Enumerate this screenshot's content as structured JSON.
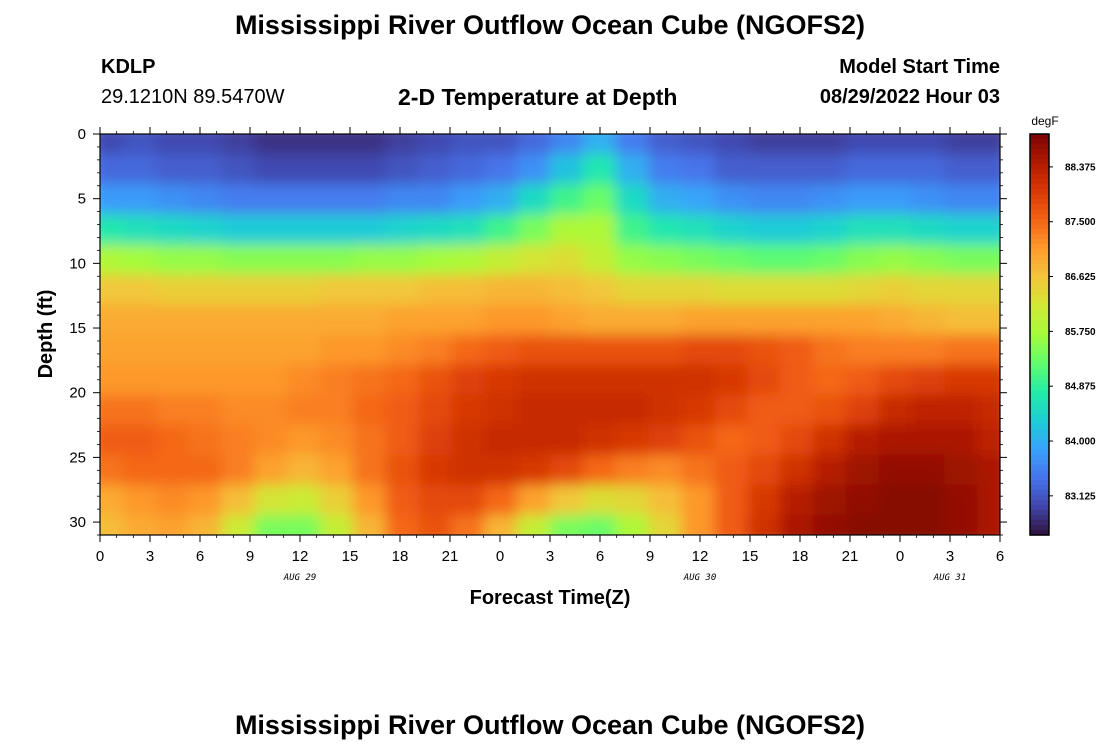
{
  "header": {
    "title": "Mississippi River Outflow Ocean Cube (NGOFS2)",
    "station": "KDLP",
    "coords": "29.1210N  89.5470W",
    "subtitle": "2-D Temperature at Depth",
    "model_start_label": "Model Start Time",
    "model_start_value": "08/29/2022 Hour 03"
  },
  "footer": {
    "title": "Mississippi River Outflow Ocean Cube (NGOFS2)"
  },
  "chart_data": {
    "type": "heatmap",
    "title": "2-D Temperature at Depth",
    "xlabel": "Forecast Time(Z)",
    "ylabel": "Depth (ft)",
    "x_tick_labels": [
      "0",
      "3",
      "6",
      "9",
      "12",
      "15",
      "18",
      "21",
      "0",
      "3",
      "6",
      "9",
      "12",
      "15",
      "18",
      "21",
      "0",
      "3",
      "6"
    ],
    "date_labels": [
      "AUG 29",
      "AUG 30",
      "AUG 31"
    ],
    "x_range_hours": [
      0,
      54
    ],
    "y_ticks": [
      0,
      5,
      10,
      15,
      20,
      25,
      30
    ],
    "ylim": [
      0,
      31
    ],
    "y_inverted": true,
    "colorbar": {
      "unit": "degF",
      "tick_labels": [
        "88.375",
        "87.500",
        "86.625",
        "85.750",
        "84.875",
        "84.000",
        "83.125"
      ],
      "range": [
        82.5,
        88.9
      ],
      "colormap": [
        "#30123b",
        "#4145ab",
        "#4675ed",
        "#39a2fc",
        "#1bcfd4",
        "#24eca6",
        "#61fc6c",
        "#a4fc3b",
        "#d1e834",
        "#f3c63a",
        "#fe9b2d",
        "#f36315",
        "#d93806",
        "#b11901",
        "#7a0402"
      ]
    },
    "values_degF": [
      [
        83.0,
        83.1,
        83.0,
        83.0,
        82.9,
        82.8,
        82.8,
        82.8,
        82.8,
        82.9,
        83.0,
        83.1,
        83.1,
        83.3,
        83.6,
        84.0,
        83.5,
        83.2,
        83.1,
        83.0,
        82.9,
        82.9,
        82.9,
        83.0,
        83.0,
        83.0,
        82.9,
        82.9
      ],
      [
        83.3,
        83.3,
        83.2,
        83.2,
        83.1,
        83.0,
        83.0,
        83.0,
        83.0,
        83.1,
        83.2,
        83.3,
        83.4,
        83.7,
        84.2,
        84.7,
        84.0,
        83.5,
        83.4,
        83.2,
        83.2,
        83.2,
        83.2,
        83.3,
        83.3,
        83.3,
        83.2,
        83.2
      ],
      [
        83.8,
        83.8,
        83.7,
        83.6,
        83.5,
        83.5,
        83.5,
        83.5,
        83.5,
        83.6,
        83.6,
        83.8,
        84.0,
        84.5,
        85.0,
        85.3,
        84.5,
        84.0,
        83.9,
        83.7,
        83.6,
        83.6,
        83.7,
        83.8,
        83.8,
        83.7,
        83.6,
        83.6
      ],
      [
        84.7,
        84.6,
        84.5,
        84.4,
        84.3,
        84.3,
        84.3,
        84.3,
        84.3,
        84.4,
        84.5,
        84.6,
        85.0,
        85.4,
        85.8,
        85.8,
        85.0,
        84.7,
        84.6,
        84.4,
        84.3,
        84.3,
        84.4,
        84.6,
        84.6,
        84.5,
        84.4,
        84.4
      ],
      [
        85.8,
        85.7,
        85.6,
        85.6,
        85.5,
        85.5,
        85.5,
        85.5,
        85.6,
        85.6,
        85.7,
        85.8,
        86.0,
        86.2,
        86.3,
        86.0,
        85.6,
        85.5,
        85.4,
        85.3,
        85.2,
        85.2,
        85.3,
        85.5,
        85.6,
        85.5,
        85.4,
        85.4
      ],
      [
        86.6,
        86.6,
        86.5,
        86.5,
        86.5,
        86.5,
        86.5,
        86.6,
        86.6,
        86.6,
        86.7,
        86.7,
        86.8,
        86.8,
        86.7,
        86.6,
        86.4,
        86.4,
        86.4,
        86.3,
        86.3,
        86.3,
        86.3,
        86.4,
        86.5,
        86.4,
        86.4,
        86.4
      ],
      [
        86.9,
        86.9,
        86.9,
        86.9,
        86.9,
        86.9,
        86.9,
        86.9,
        86.9,
        87.0,
        87.0,
        87.0,
        87.1,
        87.1,
        87.0,
        86.9,
        86.9,
        86.9,
        87.0,
        87.0,
        87.0,
        87.0,
        87.0,
        87.0,
        86.9,
        86.8,
        86.7,
        86.7
      ],
      [
        87.0,
        87.0,
        87.0,
        87.0,
        87.0,
        87.0,
        87.0,
        87.1,
        87.1,
        87.2,
        87.3,
        87.5,
        87.6,
        87.7,
        87.7,
        87.7,
        87.7,
        87.7,
        87.8,
        87.8,
        87.7,
        87.6,
        87.4,
        87.3,
        87.3,
        87.3,
        87.4,
        87.4
      ],
      [
        87.1,
        87.1,
        87.1,
        87.1,
        87.1,
        87.1,
        87.2,
        87.3,
        87.4,
        87.5,
        87.7,
        87.9,
        88.0,
        88.1,
        88.1,
        88.1,
        88.1,
        88.1,
        88.1,
        88.0,
        87.8,
        87.6,
        87.5,
        87.6,
        87.8,
        87.9,
        88.0,
        88.0
      ],
      [
        87.4,
        87.4,
        87.3,
        87.3,
        87.2,
        87.2,
        87.3,
        87.3,
        87.5,
        87.6,
        87.8,
        88.0,
        88.1,
        88.2,
        88.2,
        88.2,
        88.2,
        88.1,
        88.0,
        87.8,
        87.6,
        87.6,
        87.7,
        87.9,
        88.2,
        88.3,
        88.3,
        88.2
      ],
      [
        87.6,
        87.6,
        87.5,
        87.4,
        87.3,
        87.2,
        87.1,
        87.2,
        87.4,
        87.6,
        87.9,
        88.1,
        88.2,
        88.2,
        88.2,
        88.1,
        88.0,
        87.9,
        87.7,
        87.5,
        87.6,
        87.8,
        88.1,
        88.4,
        88.5,
        88.5,
        88.5,
        88.3
      ],
      [
        87.4,
        87.5,
        87.5,
        87.5,
        87.3,
        87.0,
        86.8,
        87.0,
        87.4,
        87.7,
        88.0,
        88.1,
        88.1,
        88.0,
        87.8,
        87.5,
        87.3,
        87.2,
        87.4,
        87.6,
        87.8,
        88.1,
        88.4,
        88.6,
        88.7,
        88.7,
        88.6,
        88.5
      ],
      [
        86.9,
        87.1,
        87.2,
        87.1,
        86.7,
        86.2,
        86.1,
        86.5,
        87.1,
        87.6,
        87.8,
        87.8,
        87.5,
        87.0,
        86.6,
        86.3,
        86.4,
        86.7,
        87.1,
        87.6,
        88.0,
        88.4,
        88.6,
        88.7,
        88.8,
        88.8,
        88.7,
        88.5
      ],
      [
        86.7,
        86.9,
        87.0,
        86.8,
        86.1,
        85.4,
        85.4,
        86.0,
        86.8,
        87.5,
        87.7,
        87.4,
        86.8,
        86.0,
        85.4,
        85.3,
        85.8,
        86.4,
        87.1,
        87.6,
        88.1,
        88.5,
        88.7,
        88.8,
        88.8,
        88.8,
        88.7,
        88.5
      ]
    ]
  }
}
